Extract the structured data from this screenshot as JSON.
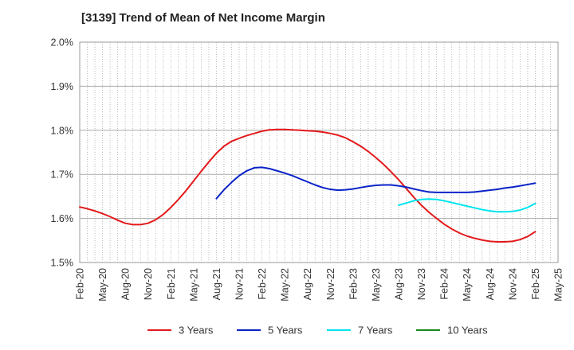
{
  "chart_data": {
    "type": "line",
    "title": "[3139]  Trend of Mean of Net Income Margin",
    "xlabel": "",
    "ylabel": "",
    "x_ticks": [
      "Feb-20",
      "May-20",
      "Aug-20",
      "Nov-20",
      "Feb-21",
      "May-21",
      "Aug-21",
      "Nov-21",
      "Feb-22",
      "May-22",
      "Aug-22",
      "Nov-22",
      "Feb-23",
      "May-23",
      "Aug-23",
      "Nov-23",
      "Feb-24",
      "May-24",
      "Aug-24",
      "Nov-24",
      "Feb-25",
      "May-25"
    ],
    "y_ticks": [
      "1.5%",
      "1.6%",
      "1.7%",
      "1.8%",
      "1.9%",
      "2.0%"
    ],
    "ylim": [
      1.5,
      2.0
    ],
    "y_unit": "%",
    "grid": true,
    "legend_position": "bottom",
    "series": [
      {
        "name": "3 Years",
        "color": "#e31a1c",
        "x": [
          "Feb-20",
          "Mar-20",
          "Apr-20",
          "May-20",
          "Jun-20",
          "Jul-20",
          "Aug-20",
          "Sep-20",
          "Oct-20",
          "Nov-20",
          "Dec-20",
          "Jan-21",
          "Feb-21",
          "Mar-21",
          "Apr-21",
          "May-21",
          "Jun-21",
          "Jul-21",
          "Aug-21",
          "Sep-21",
          "Oct-21",
          "Nov-21",
          "Dec-21",
          "Jan-22",
          "Feb-22",
          "Mar-22",
          "Apr-22",
          "May-22",
          "Jun-22",
          "Jul-22",
          "Aug-22",
          "Sep-22",
          "Oct-22",
          "Nov-22",
          "Dec-22",
          "Jan-23",
          "Feb-23",
          "Mar-23",
          "Apr-23",
          "May-23",
          "Jun-23",
          "Jul-23",
          "Aug-23",
          "Sep-23",
          "Oct-23",
          "Nov-23",
          "Dec-23",
          "Jan-24",
          "Feb-24",
          "Mar-24",
          "Apr-24",
          "May-24",
          "Jun-24",
          "Jul-24",
          "Aug-24",
          "Sep-24",
          "Oct-24",
          "Nov-24",
          "Dec-24",
          "Jan-25",
          "Feb-25"
        ],
        "values": [
          1.626,
          1.622,
          1.617,
          1.611,
          1.604,
          1.596,
          1.589,
          1.586,
          1.586,
          1.589,
          1.597,
          1.609,
          1.625,
          1.643,
          1.663,
          1.685,
          1.707,
          1.728,
          1.748,
          1.764,
          1.775,
          1.782,
          1.788,
          1.793,
          1.798,
          1.801,
          1.802,
          1.802,
          1.801,
          1.8,
          1.799,
          1.798,
          1.796,
          1.793,
          1.789,
          1.783,
          1.774,
          1.764,
          1.752,
          1.738,
          1.723,
          1.706,
          1.688,
          1.668,
          1.648,
          1.63,
          1.614,
          1.6,
          1.587,
          1.576,
          1.567,
          1.56,
          1.555,
          1.551,
          1.548,
          1.547,
          1.547,
          1.548,
          1.552,
          1.559,
          1.57
        ]
      },
      {
        "name": "5 Years",
        "color": "#0a23c8",
        "x": [
          "Aug-21",
          "Sep-21",
          "Oct-21",
          "Nov-21",
          "Dec-21",
          "Jan-22",
          "Feb-22",
          "Mar-22",
          "Apr-22",
          "May-22",
          "Jun-22",
          "Jul-22",
          "Aug-22",
          "Sep-22",
          "Oct-22",
          "Nov-22",
          "Dec-22",
          "Jan-23",
          "Feb-23",
          "Mar-23",
          "Apr-23",
          "May-23",
          "Jun-23",
          "Jul-23",
          "Aug-23",
          "Sep-23",
          "Oct-23",
          "Nov-23",
          "Dec-23",
          "Jan-24",
          "Feb-24",
          "Mar-24",
          "Apr-24",
          "May-24",
          "Jun-24",
          "Jul-24",
          "Aug-24",
          "Sep-24",
          "Oct-24",
          "Nov-24",
          "Dec-24",
          "Jan-25",
          "Feb-25"
        ],
        "values": [
          1.645,
          1.665,
          1.682,
          1.697,
          1.708,
          1.715,
          1.716,
          1.713,
          1.708,
          1.703,
          1.697,
          1.69,
          1.683,
          1.676,
          1.67,
          1.666,
          1.664,
          1.665,
          1.667,
          1.67,
          1.673,
          1.675,
          1.676,
          1.676,
          1.674,
          1.671,
          1.667,
          1.663,
          1.66,
          1.659,
          1.659,
          1.659,
          1.659,
          1.659,
          1.66,
          1.662,
          1.664,
          1.666,
          1.669,
          1.671,
          1.674,
          1.677,
          1.68
        ]
      },
      {
        "name": "7 Years",
        "color": "#00e5ee",
        "x": [
          "Aug-23",
          "Sep-23",
          "Oct-23",
          "Nov-23",
          "Dec-23",
          "Jan-24",
          "Feb-24",
          "Mar-24",
          "Apr-24",
          "May-24",
          "Jun-24",
          "Jul-24",
          "Aug-24",
          "Sep-24",
          "Oct-24",
          "Nov-24",
          "Dec-24",
          "Jan-25",
          "Feb-25"
        ],
        "values": [
          1.63,
          1.635,
          1.64,
          1.643,
          1.644,
          1.643,
          1.64,
          1.636,
          1.632,
          1.628,
          1.624,
          1.62,
          1.617,
          1.615,
          1.615,
          1.616,
          1.619,
          1.625,
          1.634
        ]
      },
      {
        "name": "10 Years",
        "color": "#1a8a1a",
        "x": [],
        "values": []
      }
    ]
  }
}
